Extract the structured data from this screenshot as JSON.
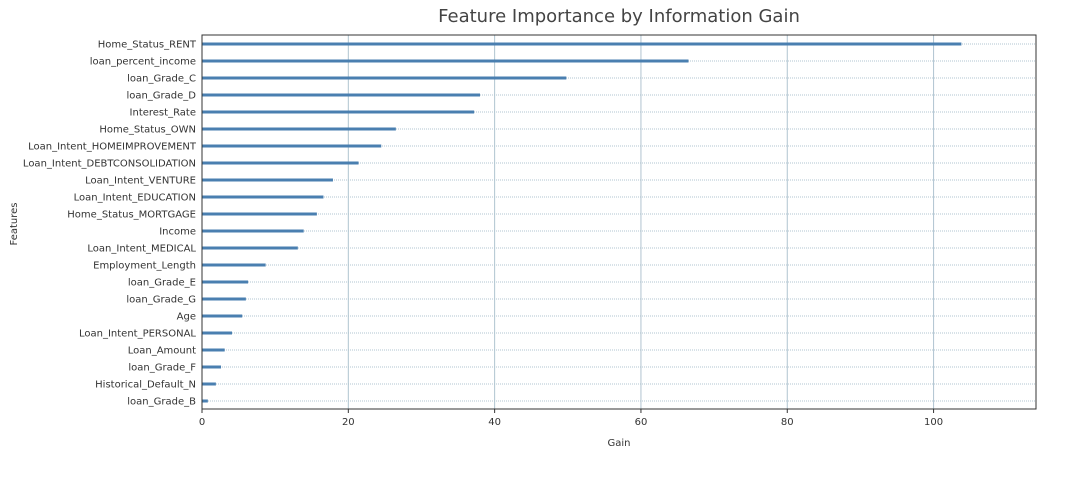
{
  "chart_data": {
    "type": "bar",
    "orientation": "horizontal",
    "title": "Feature Importance by Information Gain",
    "xlabel": "Gain",
    "ylabel": "Features",
    "xlim": [
      0,
      114
    ],
    "xticks": [
      0,
      20,
      40,
      60,
      80,
      100
    ],
    "grid": true,
    "bar_color": "#4a7fb0",
    "grid_color": "#b0c4d0",
    "categories": [
      "Home_Status_RENT",
      "loan_percent_income",
      "loan_Grade_C",
      "loan_Grade_D",
      "Interest_Rate",
      "Home_Status_OWN",
      "Loan_Intent_HOMEIMPROVEMENT",
      "Loan_Intent_DEBTCONSOLIDATION",
      "Loan_Intent_VENTURE",
      "Loan_Intent_EDUCATION",
      "Home_Status_MORTGAGE",
      "Income",
      "Loan_Intent_MEDICAL",
      "Employment_Length",
      "loan_Grade_E",
      "loan_Grade_G",
      "Age",
      "Loan_Intent_PERSONAL",
      "Loan_Amount",
      "loan_Grade_F",
      "Historical_Default_N",
      "loan_Grade_B"
    ],
    "values": [
      103.8,
      66.5,
      49.8,
      38.0,
      37.2,
      26.5,
      24.5,
      21.4,
      17.9,
      16.6,
      15.7,
      13.9,
      13.1,
      8.7,
      6.3,
      6.0,
      5.5,
      4.1,
      3.1,
      2.6,
      1.9,
      0.8
    ]
  }
}
